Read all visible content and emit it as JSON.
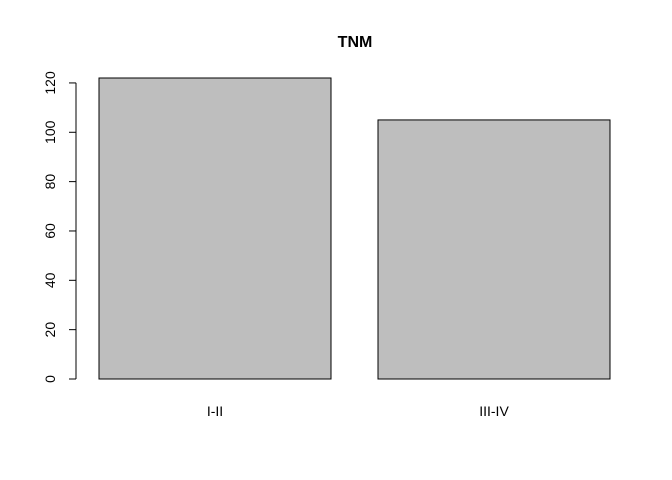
{
  "chart_data": {
    "type": "bar",
    "title": "TNM",
    "xlabel": "",
    "ylabel": "",
    "categories": [
      "I-II",
      "III-IV"
    ],
    "values": [
      122,
      105
    ],
    "ylim": [
      0,
      122
    ],
    "yticks": [
      0,
      20,
      40,
      60,
      80,
      100,
      120
    ],
    "grid": false,
    "bar_color": "#bebebe",
    "border_color": "#000000"
  }
}
